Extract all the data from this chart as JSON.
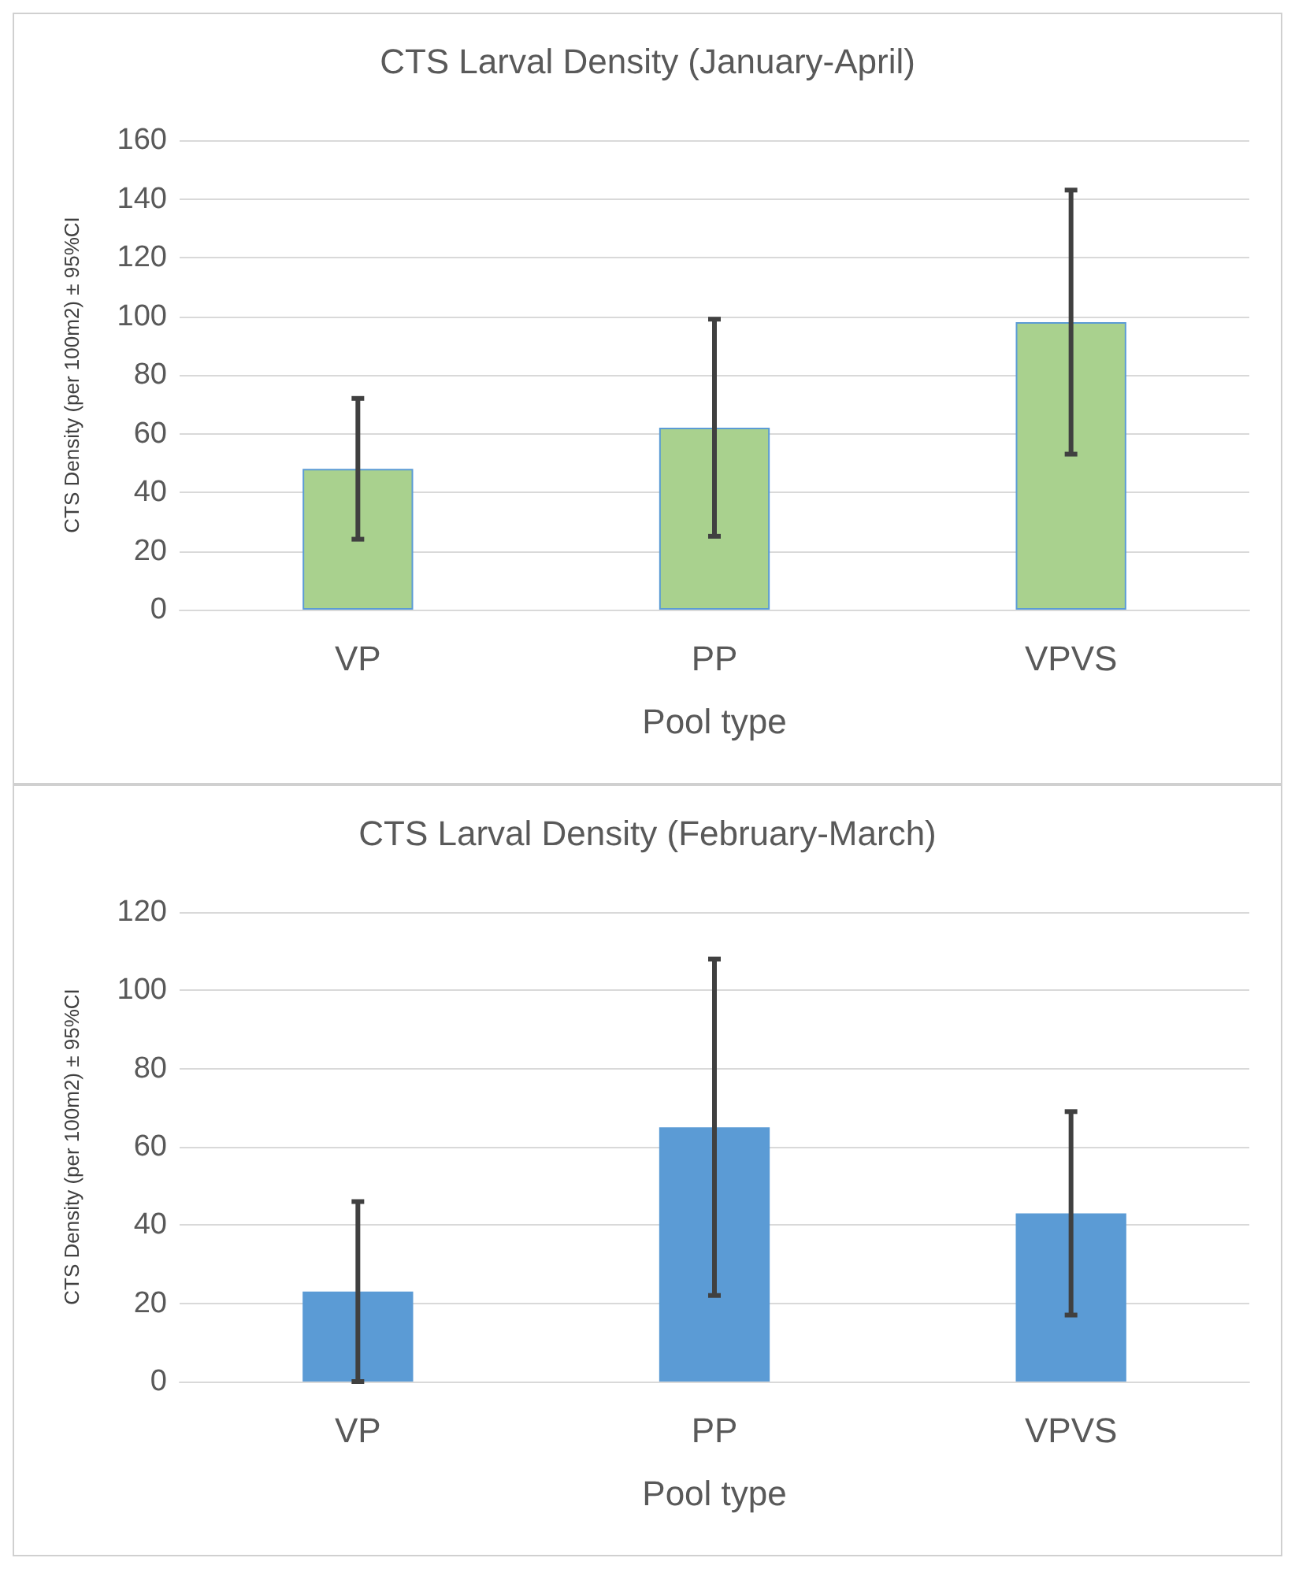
{
  "chart_data": [
    {
      "type": "bar",
      "title": "CTS Larval Density (January-April)",
      "xlabel": "Pool type",
      "ylabel": "CTS Density (per 100m2) ± 95%CI",
      "categories": [
        "VP",
        "PP",
        "VPVS"
      ],
      "values": [
        48,
        62,
        98
      ],
      "errors": [
        24,
        37,
        45
      ],
      "color": "#a9d18e",
      "ylim": [
        0,
        160
      ],
      "yticks": [
        0,
        20,
        40,
        60,
        80,
        100,
        120,
        140,
        160
      ],
      "grid": "y"
    },
    {
      "type": "bar",
      "title": "CTS Larval Density (February-March)",
      "xlabel": "Pool type",
      "ylabel": "CTS Density (per 100m2) ± 95%CI",
      "categories": [
        "VP",
        "PP",
        "VPVS"
      ],
      "values": [
        23,
        65,
        43
      ],
      "errors": [
        23,
        43,
        26
      ],
      "color": "#5b9bd5",
      "ylim": [
        0,
        120
      ],
      "yticks": [
        0,
        20,
        40,
        60,
        80,
        100,
        120
      ],
      "grid": "y"
    }
  ]
}
